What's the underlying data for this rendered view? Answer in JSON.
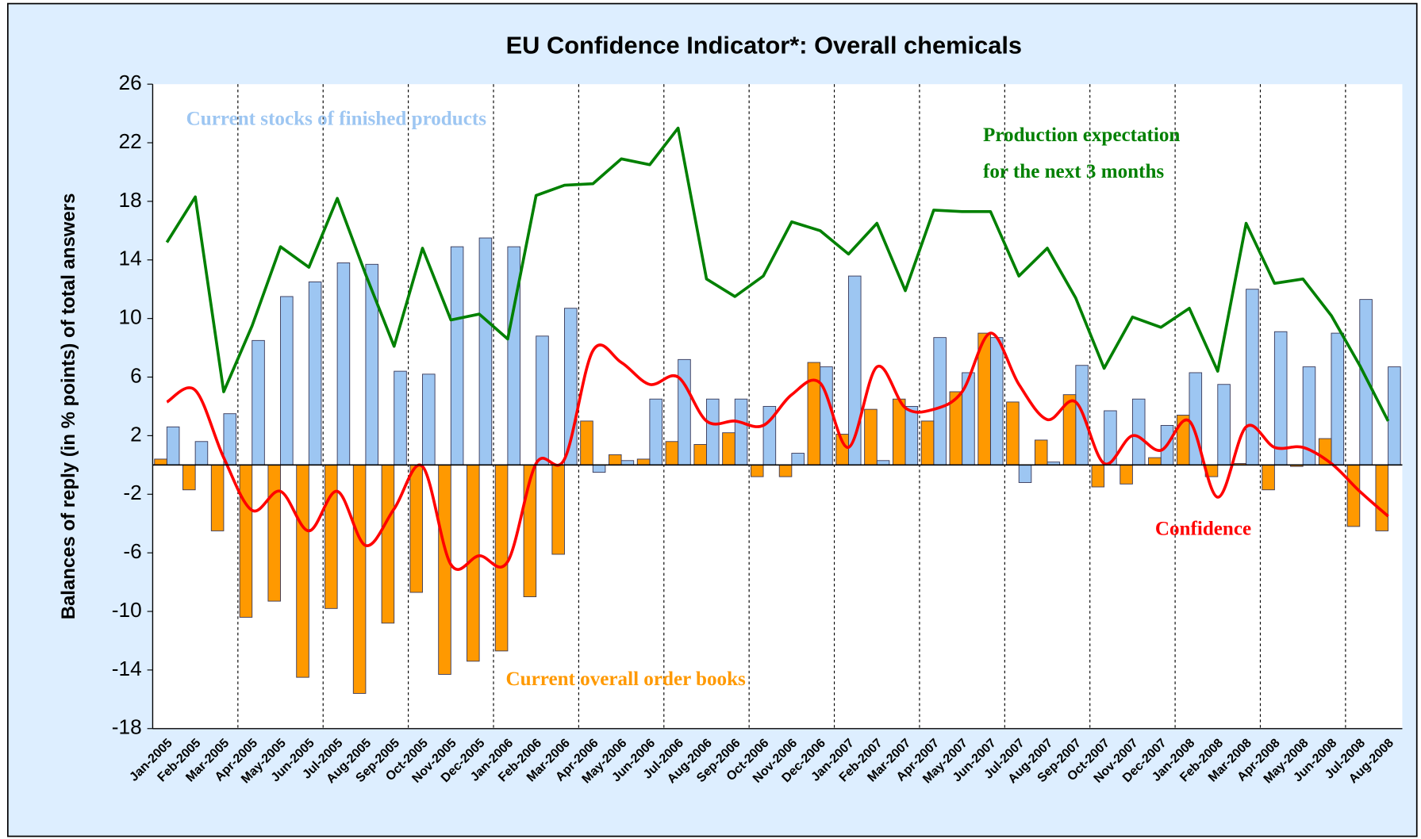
{
  "chart_data": {
    "type": "bar_line",
    "title": "EU Confidence Indicator*: Overall chemicals",
    "y_label": "Balances of reply (in % points) of total answers",
    "categories": [
      "Jan-2005",
      "Feb-2005",
      "Mar-2005",
      "Apr-2005",
      "May-2005",
      "Jun-2005",
      "Jul-2005",
      "Aug-2005",
      "Sep-2005",
      "Oct-2005",
      "Nov-2005",
      "Dec-2005",
      "Jan-2006",
      "Feb-2006",
      "Mar-2006",
      "Apr-2006",
      "May-2006",
      "Jun-2006",
      "Jul-2006",
      "Aug-2006",
      "Sep-2006",
      "Oct-2006",
      "Nov-2006",
      "Dec-2006",
      "Jan-2007",
      "Feb-2007",
      "Mar-2007",
      "Apr-2007",
      "May-2007",
      "Jun-2007",
      "Jul-2007",
      "Aug-2007",
      "Sep-2007",
      "Oct-2007",
      "Nov-2007",
      "Dec-2007",
      "Jan-2008",
      "Feb-2008",
      "Mar-2008",
      "Apr-2008",
      "May-2008",
      "Jun-2008",
      "Jul-2008",
      "Aug-2008"
    ],
    "series": [
      {
        "name": "Current stocks of finished products",
        "type": "bar",
        "color": "#9dc6f2",
        "values": [
          2.6,
          1.6,
          3.5,
          8.5,
          11.5,
          12.5,
          13.8,
          13.7,
          6.4,
          6.2,
          14.9,
          15.5,
          14.9,
          8.8,
          10.7,
          -0.5,
          0.3,
          4.5,
          7.2,
          4.5,
          4.5,
          4.0,
          0.8,
          6.7,
          12.9,
          0.3,
          4.0,
          8.7,
          6.3,
          8.7,
          -1.2,
          0.2,
          6.8,
          3.7,
          4.5,
          2.7,
          6.3,
          5.5,
          12.0,
          9.1,
          6.7,
          9.0,
          11.3,
          6.7
        ]
      },
      {
        "name": "Current overall order books",
        "type": "bar",
        "color": "#ff9900",
        "values": [
          0.4,
          -1.7,
          -4.5,
          -10.4,
          -9.3,
          -14.5,
          -9.8,
          -15.6,
          -10.8,
          -8.7,
          -14.3,
          -13.4,
          -12.7,
          -9.0,
          -6.1,
          3.0,
          0.7,
          0.4,
          1.6,
          1.4,
          2.2,
          -0.8,
          -0.8,
          7.0,
          2.1,
          3.8,
          4.5,
          3.0,
          5.0,
          9.0,
          4.3,
          1.7,
          4.8,
          -1.5,
          -1.3,
          0.5,
          3.4,
          -0.8,
          0.1,
          -1.7,
          -0.1,
          1.8,
          -4.2,
          -4.5
        ]
      },
      {
        "name": [
          "Production expectation",
          "for the next 3 months"
        ],
        "type": "line",
        "color": "#008000",
        "values": [
          15.2,
          18.3,
          5.0,
          9.5,
          14.9,
          13.5,
          18.2,
          13.0,
          8.1,
          14.8,
          9.9,
          10.3,
          8.6,
          18.4,
          19.1,
          19.2,
          20.9,
          20.5,
          23.0,
          12.7,
          11.5,
          12.9,
          16.6,
          16.0,
          14.4,
          16.5,
          11.9,
          17.4,
          17.3,
          17.3,
          12.9,
          14.8,
          11.4,
          6.6,
          10.1,
          9.4,
          10.7,
          6.4,
          16.5,
          12.4,
          12.7,
          10.2,
          6.8,
          3.0
        ]
      },
      {
        "name": "Confidence",
        "type": "line",
        "smooth": true,
        "color": "#ff0000",
        "values": [
          4.3,
          5.1,
          0.5,
          -3.1,
          -1.8,
          -4.5,
          -1.8,
          -5.5,
          -3.0,
          -0.1,
          -6.8,
          -6.2,
          -6.6,
          0.1,
          0.4,
          7.8,
          7.0,
          5.5,
          6.0,
          3.0,
          3.0,
          2.7,
          4.8,
          5.6,
          1.2,
          6.7,
          3.9,
          3.8,
          5.0,
          9.0,
          5.5,
          3.1,
          4.3,
          0.1,
          2.0,
          1.0,
          3.0,
          -2.2,
          2.6,
          1.2,
          1.2,
          0.1,
          -1.8,
          -3.5
        ]
      }
    ],
    "ylim": [
      -18,
      26
    ],
    "yticks": [
      -18,
      -14,
      -10,
      -6,
      -2,
      2,
      6,
      10,
      14,
      18,
      22,
      26
    ]
  }
}
